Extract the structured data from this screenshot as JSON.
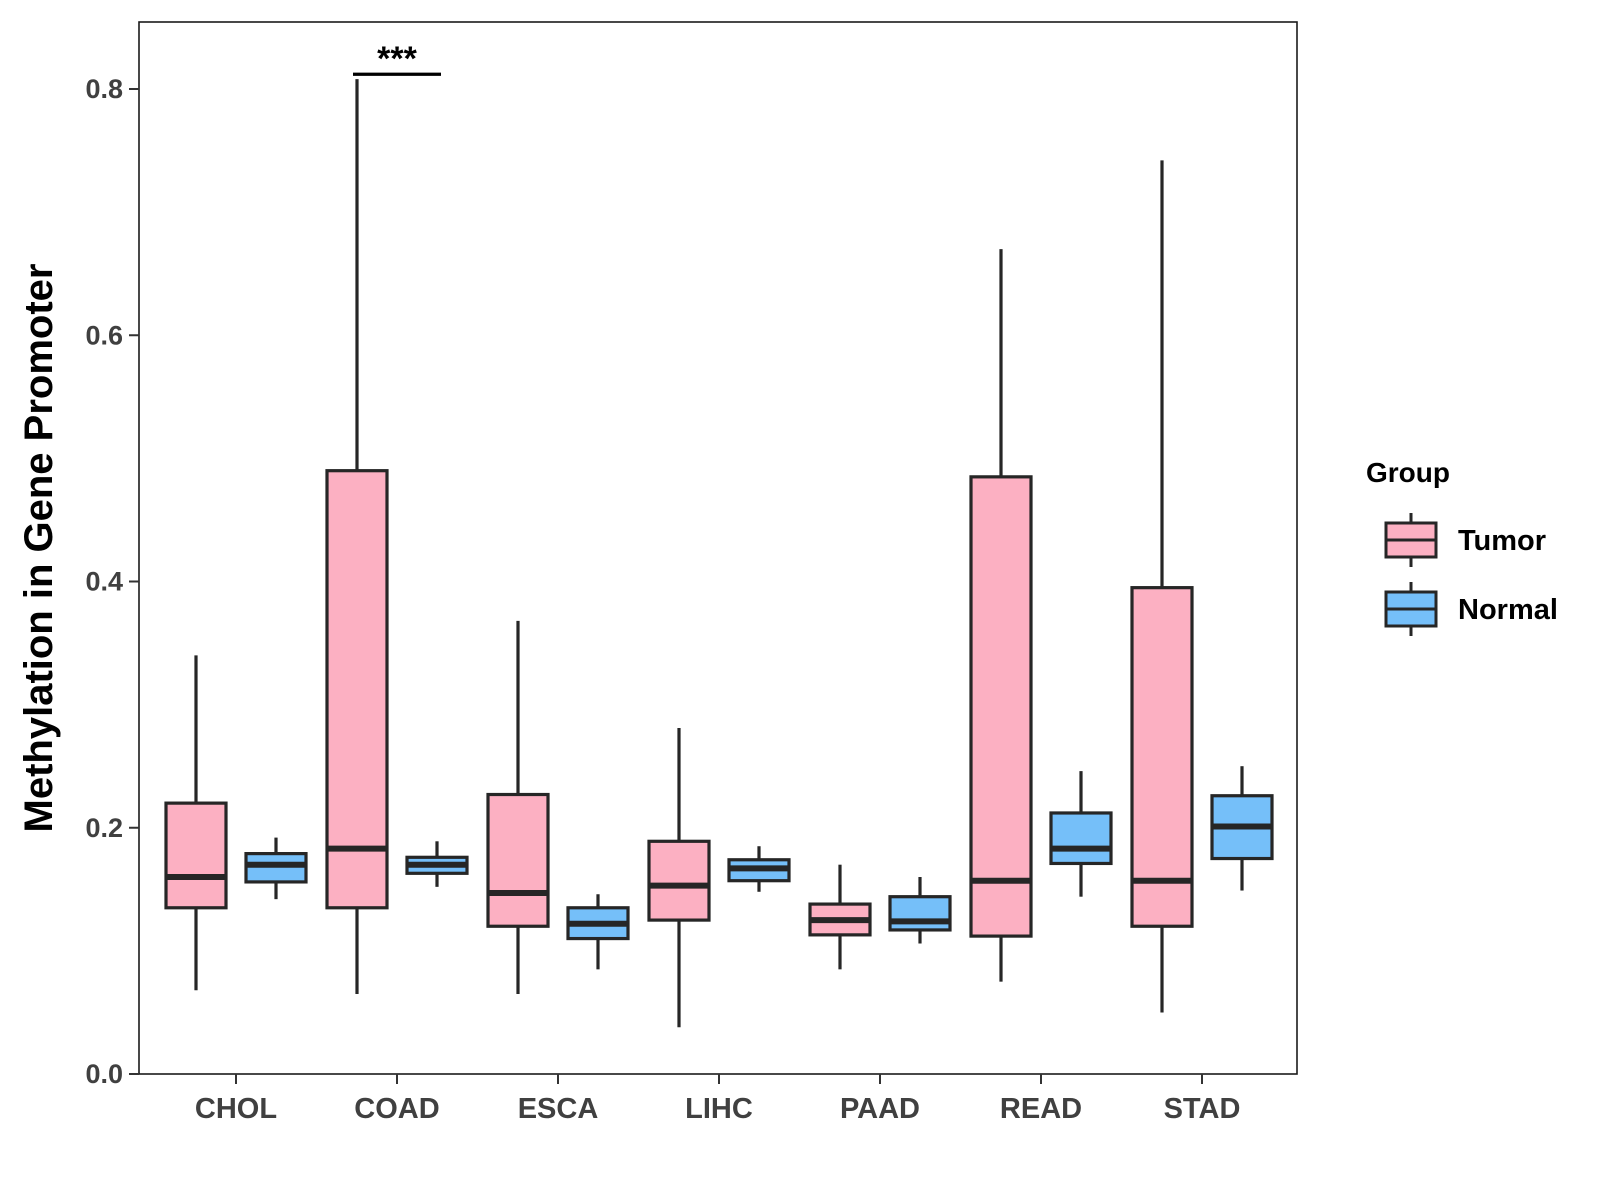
{
  "chart_data": {
    "type": "boxplot",
    "title": "",
    "xlabel": "",
    "ylabel": "Methylation in Gene Promoter",
    "ylim": [
      0.0,
      0.855
    ],
    "yticks": [
      "0.0",
      "0.2",
      "0.4",
      "0.6",
      "0.8"
    ],
    "ytick_values": [
      0.0,
      0.2,
      0.4,
      0.6,
      0.8
    ],
    "categories": [
      "CHOL",
      "COAD",
      "ESCA",
      "LIHC",
      "PAAD",
      "READ",
      "STAD"
    ],
    "legend": {
      "title": "Group",
      "placement": "right",
      "entries": [
        {
          "name": "Tumor",
          "color": "#fcb0c2"
        },
        {
          "name": "Normal",
          "color": "#75bff9"
        }
      ]
    },
    "series": [
      {
        "name": "Tumor",
        "color": "#fcb0c2",
        "boxes": [
          {
            "category": "CHOL",
            "min": 0.068,
            "q1": 0.135,
            "median": 0.16,
            "q3": 0.22,
            "max": 0.34
          },
          {
            "category": "COAD",
            "min": 0.065,
            "q1": 0.135,
            "median": 0.183,
            "q3": 0.49,
            "max": 0.808
          },
          {
            "category": "ESCA",
            "min": 0.065,
            "q1": 0.12,
            "median": 0.147,
            "q3": 0.227,
            "max": 0.368
          },
          {
            "category": "LIHC",
            "min": 0.038,
            "q1": 0.125,
            "median": 0.153,
            "q3": 0.189,
            "max": 0.281
          },
          {
            "category": "PAAD",
            "min": 0.085,
            "q1": 0.113,
            "median": 0.125,
            "q3": 0.138,
            "max": 0.17
          },
          {
            "category": "READ",
            "min": 0.075,
            "q1": 0.112,
            "median": 0.157,
            "q3": 0.485,
            "max": 0.67
          },
          {
            "category": "STAD",
            "min": 0.05,
            "q1": 0.12,
            "median": 0.157,
            "q3": 0.395,
            "max": 0.742
          }
        ]
      },
      {
        "name": "Normal",
        "color": "#75bff9",
        "boxes": [
          {
            "category": "CHOL",
            "min": 0.142,
            "q1": 0.156,
            "median": 0.17,
            "q3": 0.179,
            "max": 0.192
          },
          {
            "category": "COAD",
            "min": 0.152,
            "q1": 0.163,
            "median": 0.17,
            "q3": 0.176,
            "max": 0.189
          },
          {
            "category": "ESCA",
            "min": 0.085,
            "q1": 0.11,
            "median": 0.122,
            "q3": 0.135,
            "max": 0.146
          },
          {
            "category": "LIHC",
            "min": 0.148,
            "q1": 0.157,
            "median": 0.167,
            "q3": 0.174,
            "max": 0.185
          },
          {
            "category": "PAAD",
            "min": 0.106,
            "q1": 0.117,
            "median": 0.124,
            "q3": 0.144,
            "max": 0.16
          },
          {
            "category": "READ",
            "min": 0.144,
            "q1": 0.171,
            "median": 0.183,
            "q3": 0.212,
            "max": 0.246
          },
          {
            "category": "STAD",
            "min": 0.149,
            "q1": 0.175,
            "median": 0.201,
            "q3": 0.226,
            "max": 0.25
          }
        ]
      }
    ],
    "annotations": [
      {
        "category": "COAD",
        "label": "***",
        "y": 0.812
      }
    ]
  }
}
